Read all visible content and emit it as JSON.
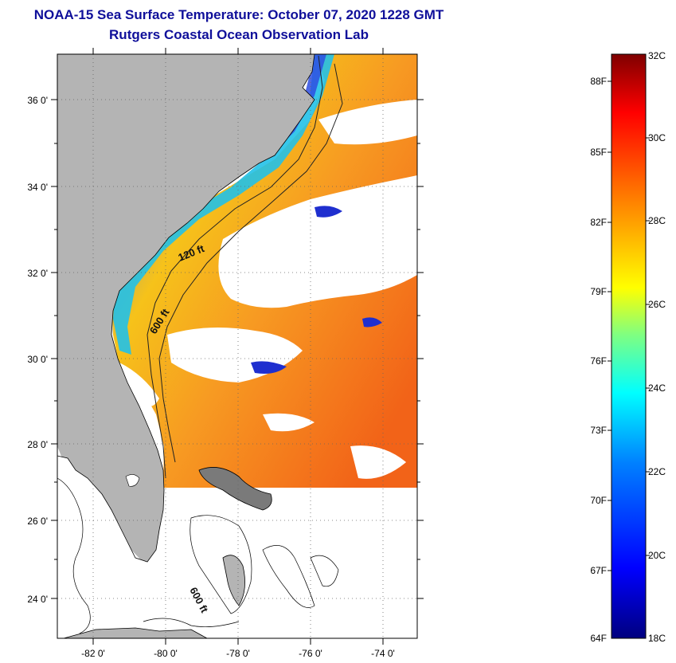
{
  "header": {
    "title": "NOAA-15 Sea Surface Temperature:  October 07, 2020 1228 GMT",
    "subtitle": "Rutgers Coastal Ocean Observation Lab"
  },
  "map": {
    "lon_range": [
      -83,
      -73
    ],
    "lat_range": [
      23,
      37
    ],
    "lat_ticks": [
      "36 0'",
      "34 0'",
      "32 0'",
      "30 0'",
      "28 0'",
      "26 0'",
      "24 0'"
    ],
    "lon_ticks": [
      "-82 0'",
      "-80 0'",
      "-78 0'",
      "-76 0'",
      "-74 0'"
    ],
    "contours": [
      "120 ft",
      "600 ft",
      "600 ft"
    ],
    "colors": {
      "land": "#b4b4b4",
      "border": "#000000"
    }
  },
  "colorbar": {
    "celsius_labels": [
      "32C",
      "30C",
      "28C",
      "26C",
      "24C",
      "22C",
      "20C",
      "18C"
    ],
    "fahrenheit_labels": [
      "88F",
      "85F",
      "82F",
      "79F",
      "76F",
      "73F",
      "70F",
      "67F",
      "64F"
    ],
    "range_c": [
      18,
      32
    ],
    "stops": [
      "#00007f",
      "#0000ff",
      "#0080ff",
      "#00ffff",
      "#80ff80",
      "#ffff00",
      "#ff8000",
      "#ff0000",
      "#7f0000"
    ]
  }
}
